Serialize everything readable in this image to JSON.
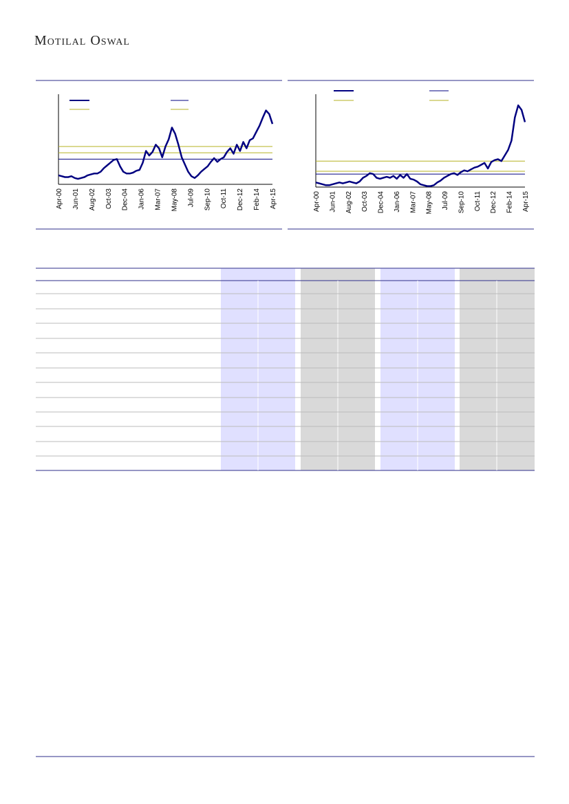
{
  "header": {
    "brand": "Motilal Oswal"
  },
  "charts": [
    {
      "type": "line",
      "xticks": [
        "Apr-00",
        "Jun-01",
        "Aug-02",
        "Oct-03",
        "Dec-04",
        "Jan-06",
        "Mar-07",
        "May-08",
        "Jul-09",
        "Sep-10",
        "Oct-11",
        "Dec-12",
        "Feb-14",
        "Apr-15"
      ],
      "ylim": [
        0,
        100
      ],
      "series": [
        {
          "color": "#000080",
          "values": [
            10,
            9,
            8,
            8,
            9,
            7,
            6,
            7,
            8,
            10,
            11,
            12,
            12,
            14,
            18,
            21,
            24,
            27,
            28,
            20,
            14,
            12,
            12,
            13,
            15,
            16,
            24,
            37,
            32,
            36,
            44,
            40,
            30,
            42,
            50,
            63,
            56,
            44,
            30,
            22,
            14,
            9,
            7,
            10,
            14,
            17,
            20,
            25,
            29,
            25,
            28,
            30,
            36,
            40,
            34,
            44,
            37,
            47,
            40,
            49,
            51,
            58,
            65,
            74,
            82,
            78,
            67
          ]
        }
      ],
      "hlines": [
        {
          "value": 42,
          "color": "#b5b020"
        },
        {
          "value": 35,
          "color": "#b5b020"
        },
        {
          "value": 28,
          "color": "#000080"
        }
      ]
    },
    {
      "type": "line",
      "xticks": [
        "Apr-00",
        "Jun-01",
        "Aug-02",
        "Oct-03",
        "Dec-04",
        "Jan-06",
        "Mar-07",
        "May-08",
        "Jul-09",
        "Sep-10",
        "Oct-11",
        "Dec-12",
        "Feb-14",
        "Apr-15"
      ],
      "ylim": [
        0,
        100
      ],
      "series": [
        {
          "color": "#000080",
          "values": [
            5,
            4,
            3,
            2,
            2,
            3,
            4,
            5,
            4,
            5,
            6,
            5,
            4,
            6,
            10,
            12,
            15,
            14,
            10,
            9,
            10,
            11,
            10,
            12,
            9,
            13,
            10,
            14,
            9,
            8,
            6,
            3,
            2,
            1,
            1,
            2,
            5,
            7,
            10,
            12,
            14,
            15,
            13,
            16,
            18,
            17,
            19,
            21,
            22,
            24,
            26,
            20,
            27,
            29,
            30,
            28,
            34,
            40,
            50,
            75,
            88,
            83,
            70
          ]
        }
      ],
      "hlines": [
        {
          "value": 28,
          "color": "#b5b020"
        },
        {
          "value": 17,
          "color": "#b5b020"
        },
        {
          "value": 14,
          "color": "#000080"
        }
      ]
    }
  ]
}
